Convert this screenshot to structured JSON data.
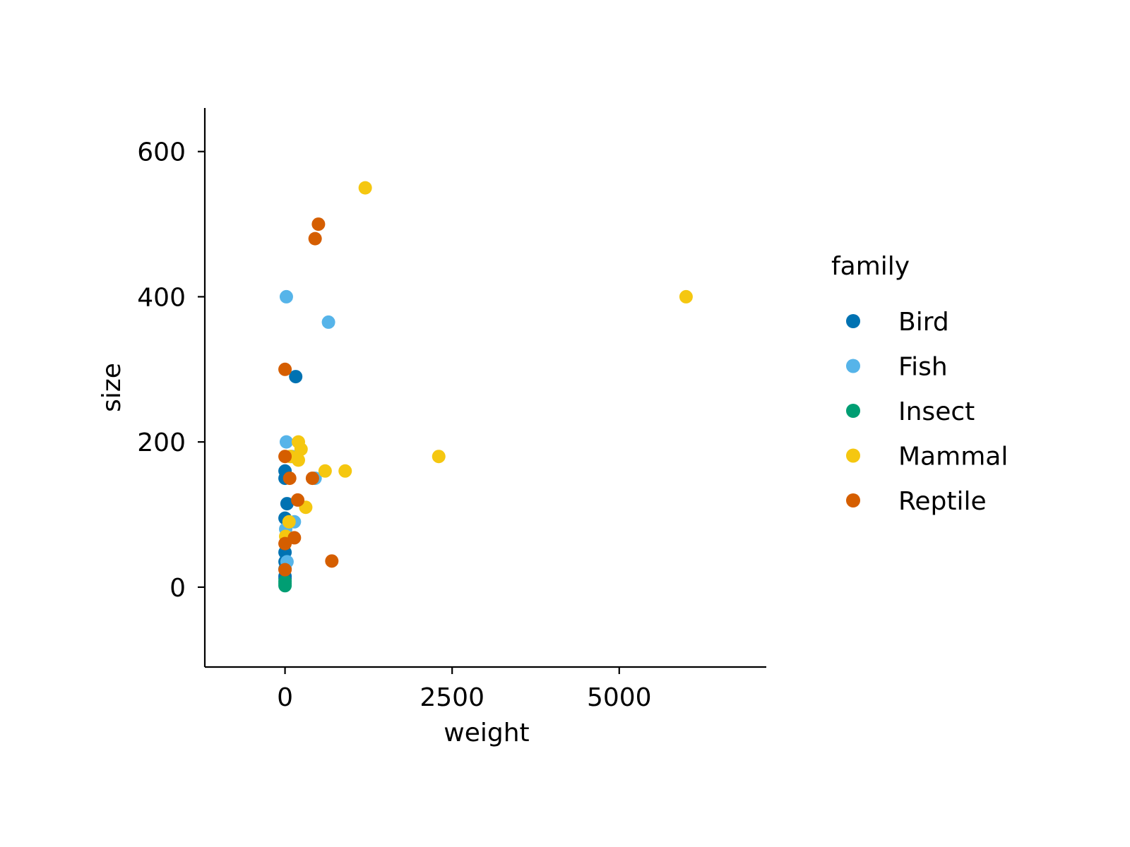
{
  "chart_data": {
    "type": "scatter",
    "xlabel": "weight",
    "ylabel": "size",
    "xlim": [
      -1200,
      7200
    ],
    "ylim": [
      -110,
      660
    ],
    "x_ticks": [
      0,
      2500,
      5000
    ],
    "x_tick_labels": [
      "0",
      "2500",
      "5000"
    ],
    "y_ticks": [
      0,
      200,
      400,
      600
    ],
    "y_tick_labels": [
      "0",
      "200",
      "400",
      "600"
    ],
    "grid": false,
    "legend": {
      "title": "family",
      "position": "right"
    },
    "series": [
      {
        "name": "Bird",
        "color": "#0072B2",
        "points": [
          [
            160,
            290
          ],
          [
            0,
            160
          ],
          [
            0,
            150
          ],
          [
            30,
            115
          ],
          [
            0,
            95
          ],
          [
            0,
            48
          ],
          [
            0,
            35
          ],
          [
            0,
            25
          ],
          [
            0,
            15
          ],
          [
            0,
            12
          ]
        ]
      },
      {
        "name": "Fish",
        "color": "#56B4E9",
        "points": [
          [
            20,
            400
          ],
          [
            650,
            365
          ],
          [
            20,
            200
          ],
          [
            100,
            180
          ],
          [
            450,
            150
          ],
          [
            140,
            90
          ],
          [
            10,
            80
          ],
          [
            30,
            35
          ]
        ]
      },
      {
        "name": "Insect",
        "color": "#009E73",
        "points": [
          [
            0,
            2
          ],
          [
            0,
            8
          ],
          [
            0,
            5
          ]
        ]
      },
      {
        "name": "Mammal",
        "color": "#F5C710",
        "points": [
          [
            1200,
            550
          ],
          [
            6000,
            400
          ],
          [
            2300,
            180
          ],
          [
            200,
            200
          ],
          [
            240,
            190
          ],
          [
            200,
            175
          ],
          [
            80,
            180
          ],
          [
            600,
            160
          ],
          [
            900,
            160
          ],
          [
            310,
            110
          ],
          [
            60,
            90
          ],
          [
            10,
            70
          ]
        ]
      },
      {
        "name": "Reptile",
        "color": "#D55E00",
        "points": [
          [
            500,
            500
          ],
          [
            450,
            480
          ],
          [
            0,
            300
          ],
          [
            0,
            180
          ],
          [
            70,
            150
          ],
          [
            410,
            150
          ],
          [
            190,
            120
          ],
          [
            140,
            68
          ],
          [
            0,
            60
          ],
          [
            700,
            36
          ],
          [
            0,
            24
          ]
        ]
      }
    ]
  }
}
